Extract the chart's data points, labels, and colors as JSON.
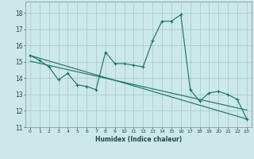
{
  "xlabel": "Humidex (Indice chaleur)",
  "background_color": "#cce8e8",
  "grid_color": "#aacece",
  "line_color": "#1a6e64",
  "xlim": [
    -0.5,
    23.5
  ],
  "ylim": [
    11.0,
    18.7
  ],
  "yticks": [
    11,
    12,
    13,
    14,
    15,
    16,
    17,
    18
  ],
  "xticks": [
    0,
    1,
    2,
    3,
    4,
    5,
    6,
    7,
    8,
    9,
    10,
    11,
    12,
    13,
    14,
    15,
    16,
    17,
    18,
    19,
    20,
    21,
    22,
    23
  ],
  "line1_x": [
    0,
    1,
    2,
    3,
    4,
    5,
    6,
    7,
    8,
    9,
    10,
    11,
    12,
    13,
    14,
    15,
    16,
    17,
    18,
    19,
    20,
    21,
    22,
    23
  ],
  "line1_y": [
    15.4,
    15.1,
    14.7,
    13.9,
    14.3,
    13.6,
    13.5,
    13.3,
    15.6,
    14.9,
    14.9,
    14.8,
    14.7,
    16.3,
    17.5,
    17.5,
    17.9,
    13.3,
    12.6,
    13.1,
    13.2,
    13.0,
    12.7,
    11.5
  ],
  "line2_x": [
    0,
    23
  ],
  "line2_y": [
    15.4,
    11.5
  ],
  "line3_x": [
    0,
    23
  ],
  "line3_y": [
    15.05,
    12.05
  ]
}
